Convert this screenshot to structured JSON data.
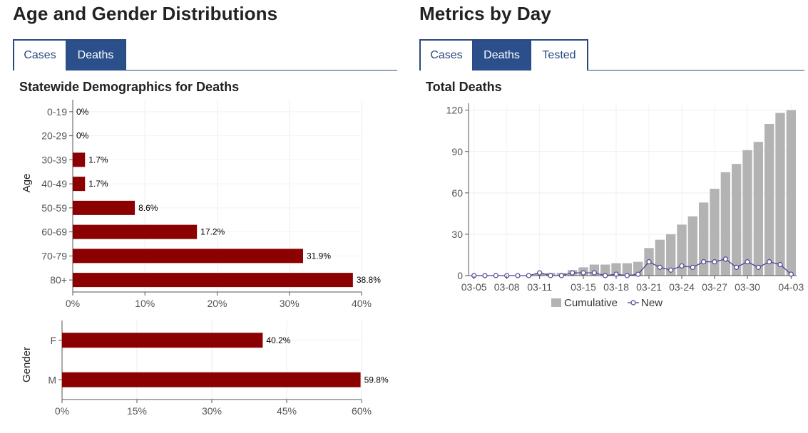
{
  "left": {
    "heading": "Age and Gender Distributions",
    "tabs": [
      {
        "label": "Cases",
        "active": false
      },
      {
        "label": "Deaths",
        "active": true
      }
    ],
    "chart_title": "Statewide Demographics for Deaths"
  },
  "right": {
    "heading": "Metrics by Day",
    "tabs": [
      {
        "label": "Cases",
        "active": false
      },
      {
        "label": "Deaths",
        "active": true
      },
      {
        "label": "Tested",
        "active": false
      }
    ],
    "chart_title": "Total Deaths"
  },
  "colors": {
    "bar_red": "#8b0000",
    "cumulative_gray": "#b3b3b3",
    "new_line": "#4b4694",
    "tab_active": "#2b4f8a"
  },
  "chart_data": [
    {
      "type": "bar",
      "orientation": "horizontal",
      "title": "Statewide Demographics for Deaths",
      "ylabel": "Age",
      "xlabel": "",
      "categories": [
        "0-19",
        "20-29",
        "30-39",
        "40-49",
        "50-59",
        "60-69",
        "70-79",
        "80+"
      ],
      "values": [
        0,
        0,
        1.7,
        1.7,
        8.6,
        17.2,
        31.9,
        38.8
      ],
      "value_labels": [
        "0%",
        "0%",
        "1.7%",
        "1.7%",
        "8.6%",
        "17.2%",
        "31.9%",
        "38.8%"
      ],
      "xlim": [
        0,
        40
      ],
      "xticks": [
        "0%",
        "10%",
        "20%",
        "30%",
        "40%"
      ],
      "grid": true
    },
    {
      "type": "bar",
      "orientation": "horizontal",
      "title": "",
      "ylabel": "Gender",
      "xlabel": "",
      "categories": [
        "F",
        "M"
      ],
      "values": [
        40.2,
        59.8
      ],
      "value_labels": [
        "40.2%",
        "59.8%"
      ],
      "xlim": [
        0,
        60
      ],
      "xticks": [
        "0%",
        "15%",
        "30%",
        "45%",
        "60%"
      ],
      "grid": true
    },
    {
      "type": "bar",
      "title": "Total Deaths",
      "xlabel": "",
      "ylabel": "",
      "x": [
        "03-05",
        "03-06",
        "03-07",
        "03-08",
        "03-09",
        "03-10",
        "03-11",
        "03-12",
        "03-13",
        "03-14",
        "03-15",
        "03-16",
        "03-17",
        "03-18",
        "03-19",
        "03-20",
        "03-21",
        "03-22",
        "03-23",
        "03-24",
        "03-25",
        "03-26",
        "03-27",
        "03-28",
        "03-29",
        "03-30",
        "03-31",
        "04-01",
        "04-02",
        "04-03"
      ],
      "xticks": [
        "03-05",
        "03-08",
        "03-11",
        "03-15",
        "03-18",
        "03-21",
        "03-24",
        "03-27",
        "03-30",
        "04-03"
      ],
      "series": [
        {
          "name": "Cumulative",
          "type": "bar",
          "values": [
            0,
            0,
            0,
            0,
            0,
            0,
            2,
            2,
            2,
            4,
            6,
            8,
            8,
            9,
            9,
            10,
            20,
            26,
            30,
            37,
            43,
            53,
            63,
            75,
            81,
            91,
            97,
            110,
            118,
            120
          ]
        },
        {
          "name": "New",
          "type": "line",
          "values": [
            0,
            0,
            0,
            0,
            0,
            0,
            2,
            0,
            0,
            2,
            2,
            2,
            0,
            1,
            0,
            1,
            10,
            6,
            4,
            7,
            6,
            10,
            10,
            12,
            6,
            10,
            6,
            10,
            8,
            1
          ]
        }
      ],
      "ylim": [
        0,
        125
      ],
      "yticks": [
        0,
        30,
        60,
        90,
        120
      ],
      "grid": true,
      "legend": "bottom"
    }
  ]
}
